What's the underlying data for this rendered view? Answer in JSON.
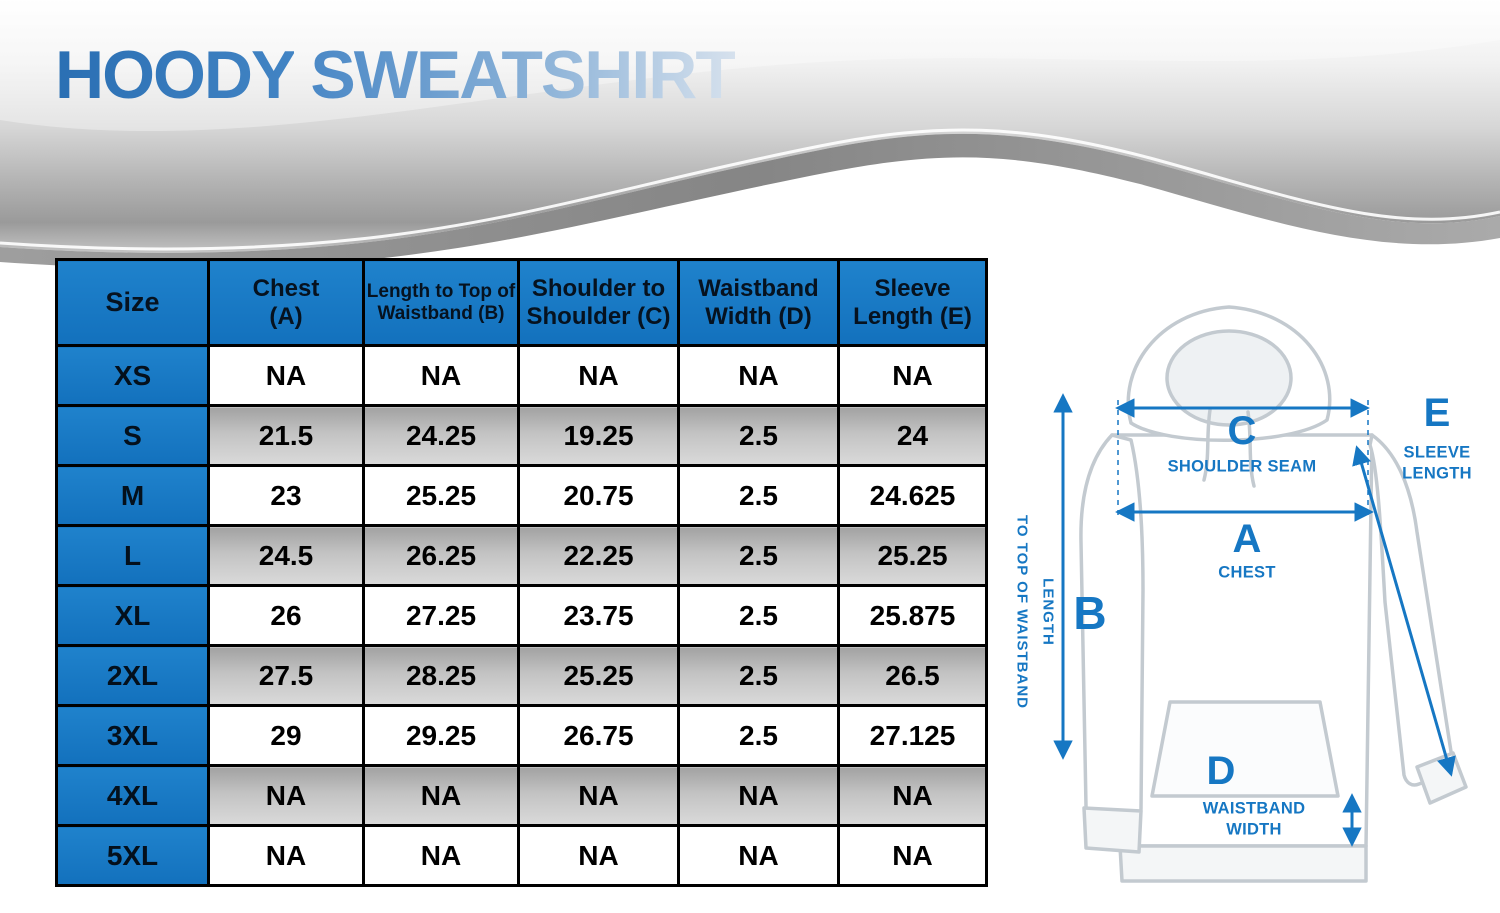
{
  "header": {
    "title_part1": "HOODY",
    "title_part2": "SWEATSHIRT"
  },
  "colors": {
    "accent_blue": "#1677c3",
    "title_blue": "#2a6fb3",
    "table_border": "#000000",
    "shaded_row_gray": "#b5b5b5",
    "banner_silver": "#c9c9c9"
  },
  "chart_data": {
    "type": "table",
    "title": "Hoody Sweatshirt size chart (inches)",
    "columns": [
      "Size",
      "Chest (A)",
      "Length to Top of Waistband (B)",
      "Shoulder to Shoulder (C)",
      "Waistband Width (D)",
      "Sleeve Length (E)"
    ],
    "columns_display": [
      "Size",
      "Chest\n(A)",
      "Length to Top of\nWaistband (B)",
      "Shoulder to\nShoulder (C)",
      "Waistband\nWidth (D)",
      "Sleeve\nLength (E)"
    ],
    "rows": [
      {
        "size": "XS",
        "values": [
          "NA",
          "NA",
          "NA",
          "NA",
          "NA"
        ],
        "shaded": false
      },
      {
        "size": "S",
        "values": [
          "21.5",
          "24.25",
          "19.25",
          "2.5",
          "24"
        ],
        "shaded": true
      },
      {
        "size": "M",
        "values": [
          "23",
          "25.25",
          "20.75",
          "2.5",
          "24.625"
        ],
        "shaded": false
      },
      {
        "size": "L",
        "values": [
          "24.5",
          "26.25",
          "22.25",
          "2.5",
          "25.25"
        ],
        "shaded": true
      },
      {
        "size": "XL",
        "values": [
          "26",
          "27.25",
          "23.75",
          "2.5",
          "25.875"
        ],
        "shaded": false
      },
      {
        "size": "2XL",
        "values": [
          "27.5",
          "28.25",
          "25.25",
          "2.5",
          "26.5"
        ],
        "shaded": true
      },
      {
        "size": "3XL",
        "values": [
          "29",
          "29.25",
          "26.75",
          "2.5",
          "27.125"
        ],
        "shaded": false
      },
      {
        "size": "4XL",
        "values": [
          "NA",
          "NA",
          "NA",
          "NA",
          "NA"
        ],
        "shaded": true
      },
      {
        "size": "5XL",
        "values": [
          "NA",
          "NA",
          "NA",
          "NA",
          "NA"
        ],
        "shaded": false
      }
    ]
  },
  "diagram": {
    "b_letter": "B",
    "b_label": "LENGTH\nTO TOP OF WAISTBAND",
    "c_letter": "C",
    "c_label": "SHOULDER SEAM",
    "a_letter": "A",
    "a_label": "CHEST",
    "e_letter": "E",
    "e_label": "SLEEVE\nLENGTH",
    "d_letter": "D",
    "d_label": "WAISTBAND\nWIDTH"
  }
}
